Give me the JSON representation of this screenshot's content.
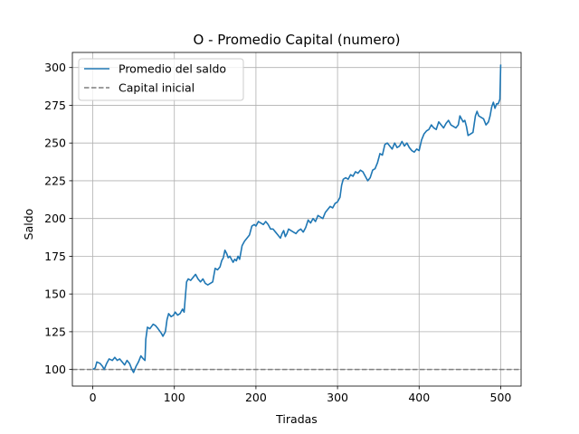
{
  "chart_data": {
    "type": "line",
    "title": "O - Promedio Capital (numero)",
    "xlabel": "Tiradas",
    "ylabel": "Saldo",
    "xlim": [
      -25,
      525
    ],
    "ylim": [
      89,
      310
    ],
    "xticks": [
      0,
      100,
      200,
      300,
      400,
      500
    ],
    "yticks": [
      100,
      125,
      150,
      175,
      200,
      225,
      250,
      275,
      300
    ],
    "grid": true,
    "legend_position": "upper-left",
    "series": [
      {
        "name": "Promedio del saldo",
        "color": "#1f77b4",
        "style": "solid",
        "points": [
          [
            0,
            100
          ],
          [
            3,
            101
          ],
          [
            5,
            105
          ],
          [
            9,
            104
          ],
          [
            12,
            102
          ],
          [
            14,
            100
          ],
          [
            17,
            104
          ],
          [
            20,
            107
          ],
          [
            24,
            106
          ],
          [
            27,
            108
          ],
          [
            30,
            106
          ],
          [
            33,
            107
          ],
          [
            36,
            105
          ],
          [
            39,
            103
          ],
          [
            42,
            106
          ],
          [
            45,
            104
          ],
          [
            48,
            100
          ],
          [
            50,
            98
          ],
          [
            53,
            102
          ],
          [
            56,
            105
          ],
          [
            59,
            109
          ],
          [
            62,
            107
          ],
          [
            64,
            106
          ],
          [
            65,
            120
          ],
          [
            67,
            128
          ],
          [
            70,
            127
          ],
          [
            74,
            130
          ],
          [
            77,
            129
          ],
          [
            80,
            127
          ],
          [
            84,
            124
          ],
          [
            86,
            122
          ],
          [
            89,
            125
          ],
          [
            91,
            133
          ],
          [
            93,
            137
          ],
          [
            96,
            135
          ],
          [
            99,
            136
          ],
          [
            101,
            138
          ],
          [
            104,
            136
          ],
          [
            107,
            137
          ],
          [
            110,
            140
          ],
          [
            112,
            138
          ],
          [
            113,
            145
          ],
          [
            115,
            158
          ],
          [
            117,
            160
          ],
          [
            120,
            159
          ],
          [
            123,
            161
          ],
          [
            126,
            163
          ],
          [
            129,
            160
          ],
          [
            132,
            158
          ],
          [
            135,
            160
          ],
          [
            138,
            157
          ],
          [
            141,
            156
          ],
          [
            144,
            157
          ],
          [
            147,
            158
          ],
          [
            150,
            167
          ],
          [
            153,
            166
          ],
          [
            156,
            168
          ],
          [
            158,
            172
          ],
          [
            160,
            174
          ],
          [
            162,
            179
          ],
          [
            164,
            177
          ],
          [
            166,
            174
          ],
          [
            168,
            175
          ],
          [
            170,
            173
          ],
          [
            172,
            171
          ],
          [
            174,
            173
          ],
          [
            176,
            172
          ],
          [
            178,
            175
          ],
          [
            180,
            173
          ],
          [
            183,
            182
          ],
          [
            186,
            185
          ],
          [
            189,
            187
          ],
          [
            192,
            189
          ],
          [
            195,
            195
          ],
          [
            198,
            196
          ],
          [
            200,
            195
          ],
          [
            203,
            198
          ],
          [
            206,
            197
          ],
          [
            209,
            196
          ],
          [
            212,
            198
          ],
          [
            215,
            196
          ],
          [
            218,
            193
          ],
          [
            221,
            193
          ],
          [
            224,
            191
          ],
          [
            227,
            189
          ],
          [
            230,
            187
          ],
          [
            232,
            190
          ],
          [
            234,
            192
          ],
          [
            236,
            188
          ],
          [
            238,
            190
          ],
          [
            240,
            193
          ],
          [
            243,
            192
          ],
          [
            246,
            191
          ],
          [
            249,
            190
          ],
          [
            252,
            192
          ],
          [
            255,
            193
          ],
          [
            258,
            191
          ],
          [
            261,
            194
          ],
          [
            264,
            199
          ],
          [
            267,
            197
          ],
          [
            270,
            200
          ],
          [
            273,
            198
          ],
          [
            276,
            202
          ],
          [
            279,
            201
          ],
          [
            282,
            200
          ],
          [
            285,
            204
          ],
          [
            288,
            206
          ],
          [
            291,
            208
          ],
          [
            294,
            207
          ],
          [
            297,
            210
          ],
          [
            300,
            211
          ],
          [
            303,
            214
          ],
          [
            305,
            222
          ],
          [
            307,
            226
          ],
          [
            310,
            227
          ],
          [
            313,
            226
          ],
          [
            316,
            229
          ],
          [
            319,
            228
          ],
          [
            322,
            231
          ],
          [
            325,
            230
          ],
          [
            328,
            232
          ],
          [
            331,
            231
          ],
          [
            334,
            228
          ],
          [
            337,
            225
          ],
          [
            340,
            227
          ],
          [
            343,
            232
          ],
          [
            346,
            233
          ],
          [
            349,
            237
          ],
          [
            352,
            243
          ],
          [
            355,
            242
          ],
          [
            358,
            249
          ],
          [
            361,
            250
          ],
          [
            364,
            248
          ],
          [
            367,
            246
          ],
          [
            370,
            250
          ],
          [
            373,
            247
          ],
          [
            376,
            248
          ],
          [
            379,
            251
          ],
          [
            382,
            248
          ],
          [
            385,
            250
          ],
          [
            388,
            247
          ],
          [
            391,
            245
          ],
          [
            394,
            244
          ],
          [
            397,
            246
          ],
          [
            400,
            245
          ],
          [
            403,
            252
          ],
          [
            406,
            256
          ],
          [
            409,
            258
          ],
          [
            412,
            259
          ],
          [
            415,
            262
          ],
          [
            418,
            260
          ],
          [
            421,
            259
          ],
          [
            424,
            264
          ],
          [
            427,
            262
          ],
          [
            430,
            260
          ],
          [
            433,
            263
          ],
          [
            436,
            265
          ],
          [
            439,
            262
          ],
          [
            442,
            261
          ],
          [
            445,
            260
          ],
          [
            448,
            262
          ],
          [
            450,
            268
          ],
          [
            452,
            266
          ],
          [
            454,
            264
          ],
          [
            456,
            265
          ],
          [
            458,
            261
          ],
          [
            460,
            255
          ],
          [
            463,
            256
          ],
          [
            466,
            257
          ],
          [
            469,
            268
          ],
          [
            471,
            271
          ],
          [
            473,
            268
          ],
          [
            476,
            267
          ],
          [
            479,
            266
          ],
          [
            482,
            262
          ],
          [
            485,
            264
          ],
          [
            487,
            268
          ],
          [
            489,
            274
          ],
          [
            491,
            277
          ],
          [
            493,
            273
          ],
          [
            495,
            276
          ],
          [
            497,
            276
          ],
          [
            499,
            279
          ],
          [
            500,
            302
          ]
        ]
      },
      {
        "name": "Capital inicial",
        "color": "#7f7f7f",
        "style": "dashed",
        "points": [
          [
            -25,
            100
          ],
          [
            525,
            100
          ]
        ]
      }
    ]
  }
}
